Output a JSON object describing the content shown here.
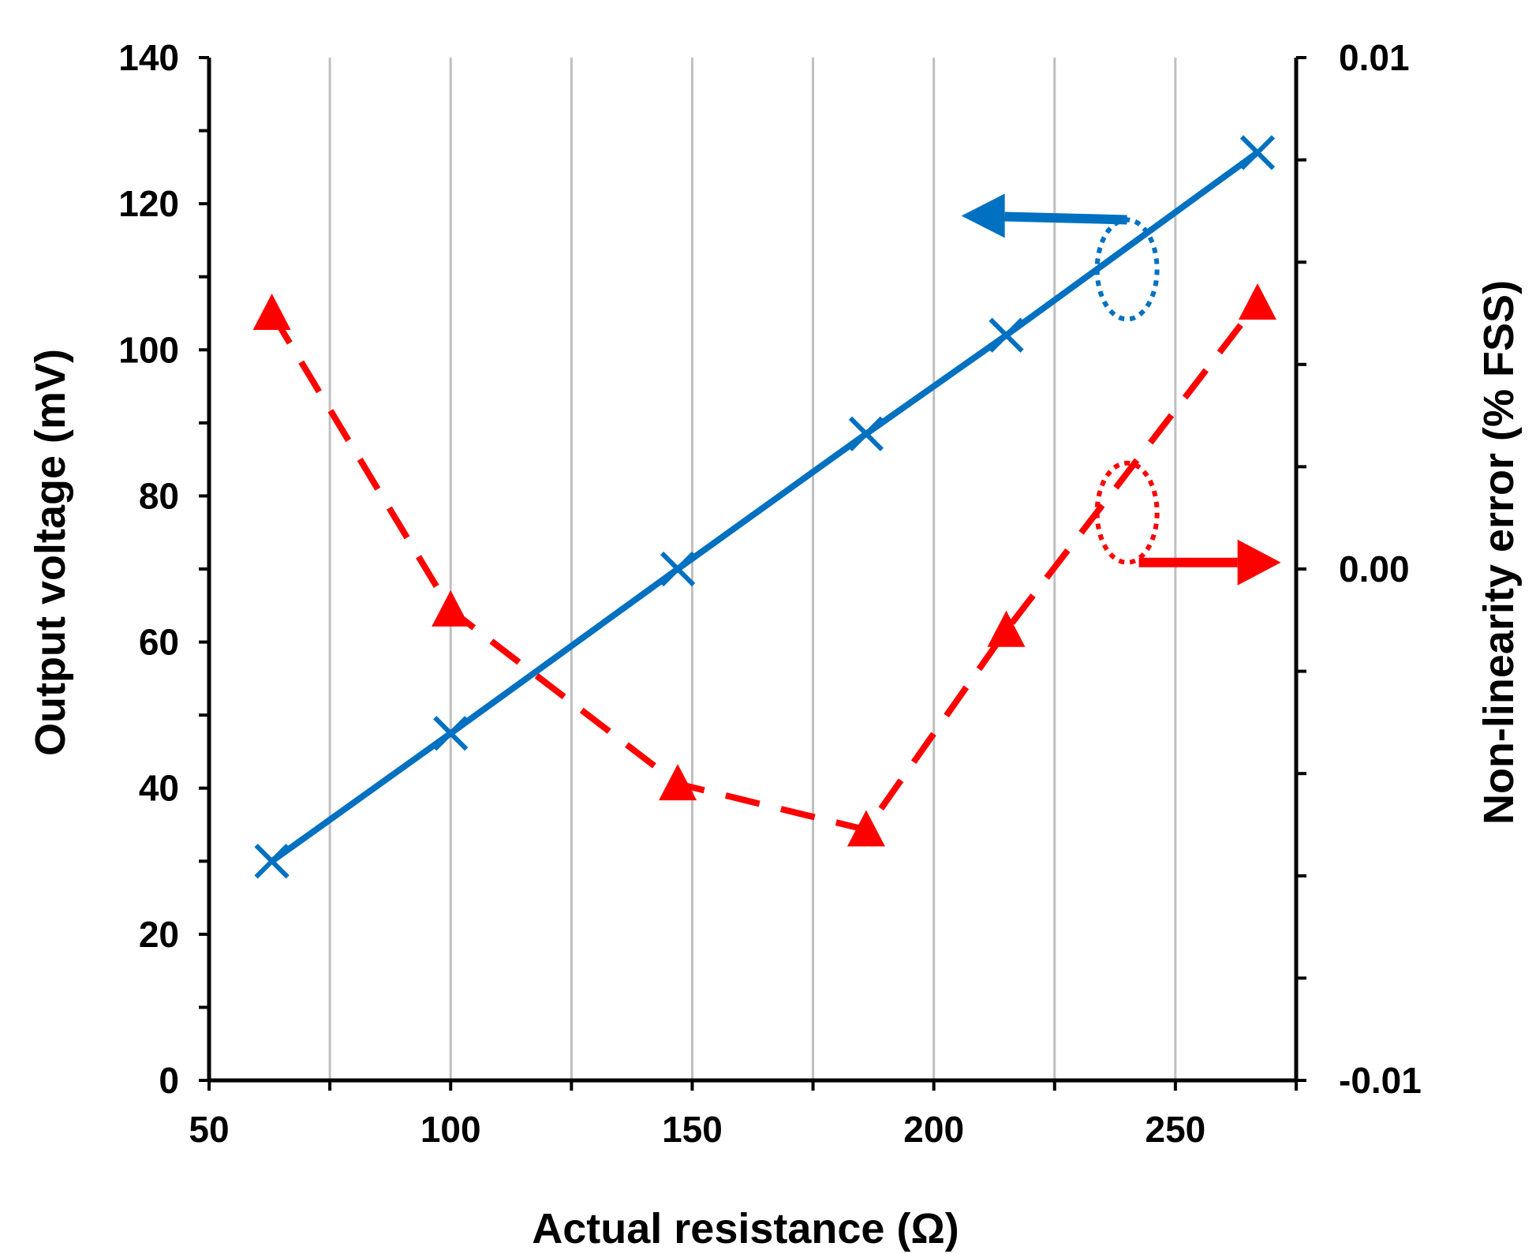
{
  "chart_data": {
    "type": "line",
    "title": "",
    "xlabel": "Actual resistance (Ω)",
    "ylabel": "Output voltage (mV)",
    "y2label": "Non-linearity error (% FSS)",
    "xlim": [
      50,
      275
    ],
    "ylim": [
      0,
      140
    ],
    "y2lim": [
      -0.01,
      0.01
    ],
    "x_ticks": [
      50,
      100,
      150,
      200,
      250
    ],
    "x_tick_labels": [
      "50",
      "100",
      "150",
      "200",
      "250"
    ],
    "y_ticks": [
      0,
      20,
      40,
      60,
      80,
      100,
      120,
      140
    ],
    "y_tick_labels": [
      "0",
      "20",
      "40",
      "60",
      "80",
      "100",
      "120",
      "140"
    ],
    "y2_ticks": [
      -0.01,
      0,
      0.01
    ],
    "y2_tick_labels": [
      "-0.01",
      "0.00",
      "0.01"
    ],
    "grid": "vertical",
    "series": [
      {
        "name": "Output voltage",
        "axis": "left",
        "marker": "x",
        "line_style": "solid",
        "color": "#0070c0",
        "x": [
          63,
          100,
          147,
          186,
          215,
          267
        ],
        "y": [
          30,
          47.5,
          70,
          88.5,
          102,
          127
        ]
      },
      {
        "name": "Non-linearity error",
        "axis": "right",
        "marker": "triangle",
        "line_style": "dashed",
        "color": "#ff0000",
        "x": [
          63,
          100,
          147,
          186,
          215,
          267
        ],
        "y": [
          0.005,
          -0.0008,
          -0.0042,
          -0.0051,
          -0.0012,
          0.0052
        ]
      }
    ],
    "annotations": [
      {
        "series": "Output voltage",
        "points_to": "left axis",
        "arrow_direction": "left"
      },
      {
        "series": "Non-linearity error",
        "points_to": "right axis",
        "arrow_direction": "right"
      }
    ]
  }
}
